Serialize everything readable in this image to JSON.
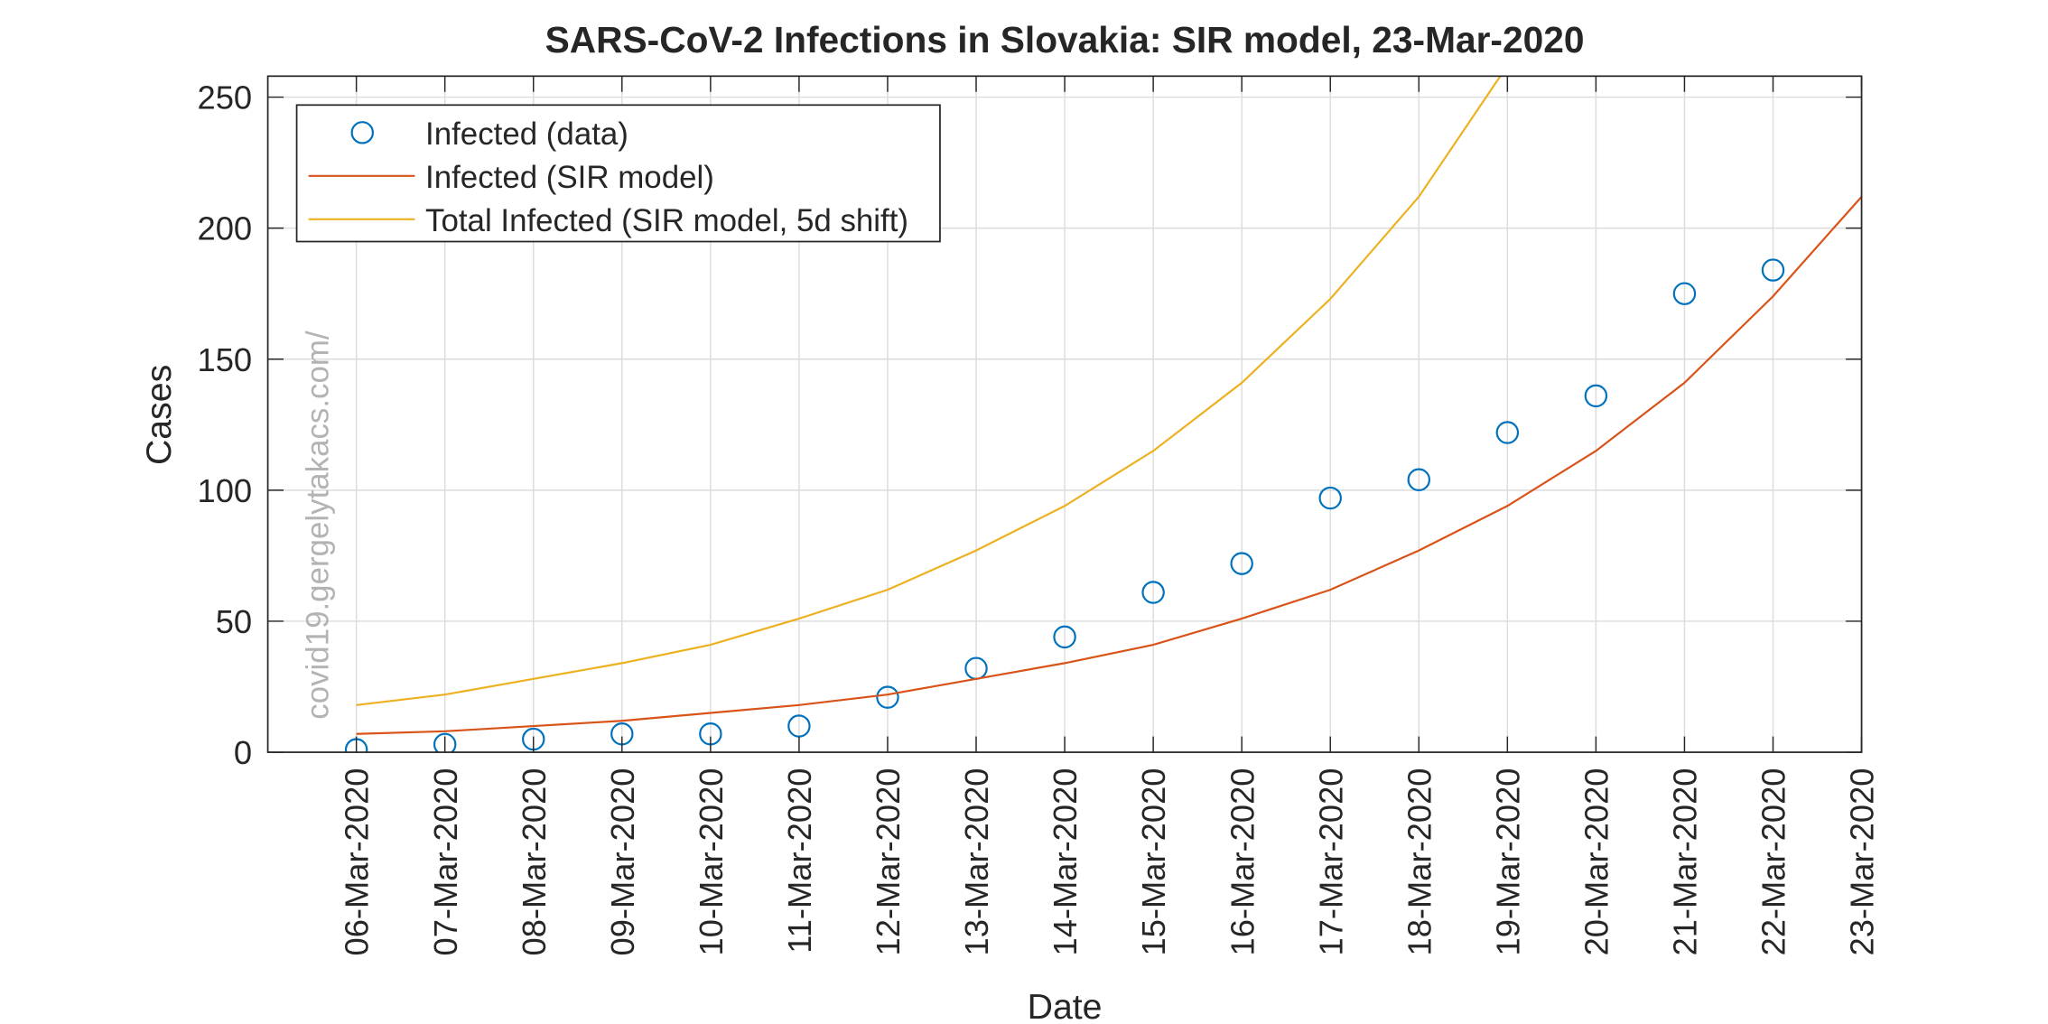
{
  "chart_data": {
    "type": "line",
    "title": "SARS-CoV-2 Infections in Slovakia: SIR model, 23-Mar-2020",
    "x_label": "Date",
    "y_label": "Cases",
    "watermark": "covid19.gergelytakacs.com/",
    "x": [
      "2020-03-06",
      "2020-03-07",
      "2020-03-08",
      "2020-03-09",
      "2020-03-10",
      "2020-03-11",
      "2020-03-12",
      "2020-03-13",
      "2020-03-14",
      "2020-03-15",
      "2020-03-16",
      "2020-03-17",
      "2020-03-18",
      "2020-03-19",
      "2020-03-20",
      "2020-03-21",
      "2020-03-22",
      "2020-03-23"
    ],
    "xlim": [
      "2020-03-05",
      "2020-03-23"
    ],
    "xticks": [
      {
        "value": "2020-03-06",
        "label": "06-Mar-2020"
      },
      {
        "value": "2020-03-07",
        "label": "07-Mar-2020"
      },
      {
        "value": "2020-03-08",
        "label": "08-Mar-2020"
      },
      {
        "value": "2020-03-09",
        "label": "09-Mar-2020"
      },
      {
        "value": "2020-03-10",
        "label": "10-Mar-2020"
      },
      {
        "value": "2020-03-11",
        "label": "11-Mar-2020"
      },
      {
        "value": "2020-03-12",
        "label": "12-Mar-2020"
      },
      {
        "value": "2020-03-13",
        "label": "13-Mar-2020"
      },
      {
        "value": "2020-03-14",
        "label": "14-Mar-2020"
      },
      {
        "value": "2020-03-15",
        "label": "15-Mar-2020"
      },
      {
        "value": "2020-03-16",
        "label": "16-Mar-2020"
      },
      {
        "value": "2020-03-17",
        "label": "17-Mar-2020"
      },
      {
        "value": "2020-03-18",
        "label": "18-Mar-2020"
      },
      {
        "value": "2020-03-19",
        "label": "19-Mar-2020"
      },
      {
        "value": "2020-03-20",
        "label": "20-Mar-2020"
      },
      {
        "value": "2020-03-21",
        "label": "21-Mar-2020"
      },
      {
        "value": "2020-03-22",
        "label": "22-Mar-2020"
      },
      {
        "value": "2020-03-23",
        "label": "23-Mar-2020"
      }
    ],
    "ylim": [
      0,
      258
    ],
    "yticks": [
      0,
      50,
      100,
      150,
      200,
      250
    ],
    "grid": true,
    "legend": "upper left",
    "series": [
      {
        "name": "Infected (data)",
        "style": "marker",
        "color": "#0072bd",
        "values": [
          1,
          3,
          5,
          7,
          7,
          10,
          21,
          32,
          44,
          61,
          72,
          97,
          104,
          122,
          136,
          175,
          184,
          null
        ]
      },
      {
        "name": "Infected (SIR model)",
        "style": "line",
        "color": "#d95319",
        "values": [
          7,
          8,
          10,
          12,
          15,
          18,
          22,
          28,
          34,
          41,
          51,
          62,
          77,
          94,
          115,
          141,
          174,
          212
        ]
      },
      {
        "name": "Total Infected (SIR model, 5d shift)",
        "style": "line",
        "color": "#edb120",
        "values": [
          18,
          22,
          28,
          34,
          41,
          51,
          62,
          77,
          94,
          115,
          141,
          173,
          212,
          262,
          null,
          null,
          null,
          null
        ]
      }
    ]
  }
}
